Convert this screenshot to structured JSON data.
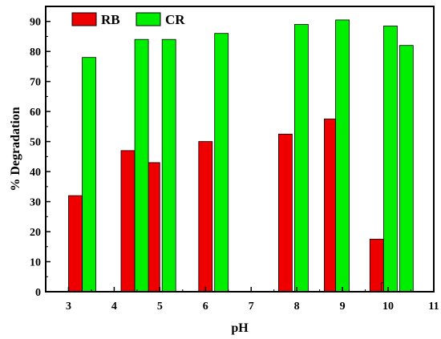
{
  "chart_data": {
    "type": "bar",
    "xlabel": "pH",
    "ylabel": "% Degradation",
    "xlim": [
      2.5,
      11
    ],
    "ylim": [
      0,
      95
    ],
    "xticks": [
      3,
      4,
      5,
      6,
      7,
      8,
      9,
      10,
      11
    ],
    "yticks": [
      0,
      10,
      20,
      30,
      40,
      50,
      60,
      70,
      80,
      90
    ],
    "legend_position": "top-left",
    "series": [
      {
        "name": "RB",
        "color": "#ee0000",
        "points": [
          {
            "x": 3.15,
            "y": 32
          },
          {
            "x": 4.3,
            "y": 47
          },
          {
            "x": 4.85,
            "y": 43
          },
          {
            "x": 6.0,
            "y": 50
          },
          {
            "x": 7.75,
            "y": 52.5
          },
          {
            "x": 8.75,
            "y": 57.5
          },
          {
            "x": 9.75,
            "y": 17.5
          },
          {
            "x": 10.0,
            "y": 3
          }
        ]
      },
      {
        "name": "CR",
        "color": "#00ee00",
        "points": [
          {
            "x": 3.45,
            "y": 78
          },
          {
            "x": 4.6,
            "y": 84
          },
          {
            "x": 5.2,
            "y": 84
          },
          {
            "x": 6.35,
            "y": 86
          },
          {
            "x": 8.1,
            "y": 89
          },
          {
            "x": 9.0,
            "y": 90.5
          },
          {
            "x": 10.05,
            "y": 88.5
          },
          {
            "x": 10.4,
            "y": 82
          }
        ]
      }
    ]
  }
}
